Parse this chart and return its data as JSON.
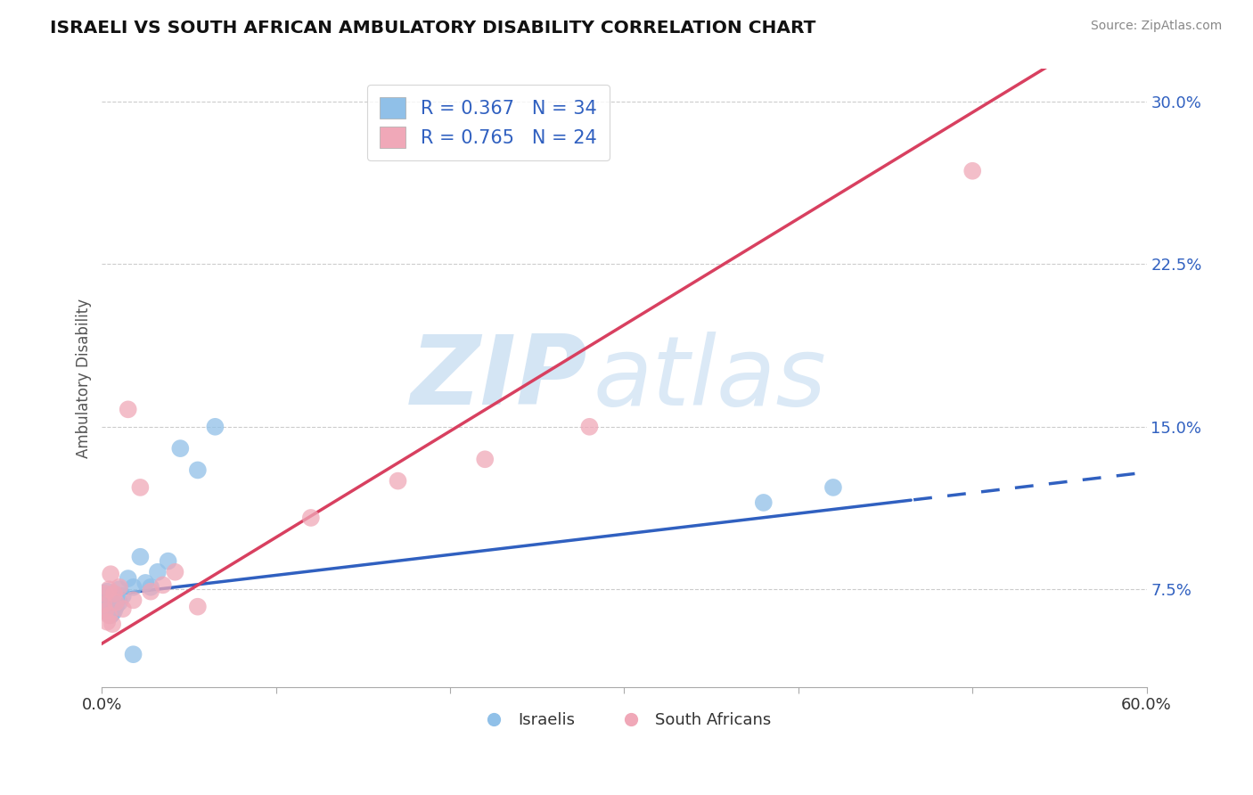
{
  "title": "ISRAELI VS SOUTH AFRICAN AMBULATORY DISABILITY CORRELATION CHART",
  "source": "Source: ZipAtlas.com",
  "ylabel": "Ambulatory Disability",
  "xlim": [
    0.0,
    0.6
  ],
  "ylim": [
    0.03,
    0.315
  ],
  "yticks": [
    0.075,
    0.15,
    0.225,
    0.3
  ],
  "ytick_labels": [
    "7.5%",
    "15.0%",
    "22.5%",
    "30.0%"
  ],
  "xticks": [
    0.0,
    0.1,
    0.2,
    0.3,
    0.4,
    0.5,
    0.6
  ],
  "blue_scatter_color": "#90C0E8",
  "pink_scatter_color": "#F0A8B8",
  "blue_line_color": "#3060C0",
  "pink_line_color": "#D84060",
  "legend_text_color": "#3060C0",
  "R_israeli": 0.367,
  "N_israeli": 34,
  "R_south_african": 0.765,
  "N_south_african": 24,
  "watermark_zip": "ZIP",
  "watermark_atlas": "atlas",
  "blue_line_intercept": 0.072,
  "blue_line_slope": 0.095,
  "pink_line_intercept": 0.05,
  "pink_line_slope": 0.49,
  "solid_cutoff": 0.465,
  "israelis_x": [
    0.001,
    0.001,
    0.001,
    0.002,
    0.002,
    0.002,
    0.003,
    0.003,
    0.004,
    0.004,
    0.005,
    0.005,
    0.006,
    0.006,
    0.007,
    0.007,
    0.008,
    0.008,
    0.01,
    0.01,
    0.012,
    0.015,
    0.018,
    0.022,
    0.025,
    0.028,
    0.032,
    0.038,
    0.045,
    0.055,
    0.065,
    0.38,
    0.42,
    0.018
  ],
  "israelis_y": [
    0.073,
    0.069,
    0.065,
    0.07,
    0.067,
    0.072,
    0.068,
    0.074,
    0.066,
    0.071,
    0.063,
    0.068,
    0.064,
    0.07,
    0.065,
    0.073,
    0.067,
    0.071,
    0.069,
    0.075,
    0.072,
    0.08,
    0.076,
    0.09,
    0.078,
    0.076,
    0.083,
    0.088,
    0.14,
    0.13,
    0.15,
    0.115,
    0.122,
    0.045
  ],
  "sa_x": [
    0.001,
    0.002,
    0.002,
    0.003,
    0.004,
    0.004,
    0.005,
    0.006,
    0.007,
    0.008,
    0.01,
    0.012,
    0.015,
    0.018,
    0.022,
    0.028,
    0.035,
    0.042,
    0.055,
    0.12,
    0.17,
    0.22,
    0.28,
    0.5
  ],
  "sa_y": [
    0.068,
    0.065,
    0.073,
    0.06,
    0.075,
    0.063,
    0.082,
    0.059,
    0.073,
    0.069,
    0.076,
    0.066,
    0.158,
    0.07,
    0.122,
    0.074,
    0.077,
    0.083,
    0.067,
    0.108,
    0.125,
    0.135,
    0.15,
    0.268
  ]
}
